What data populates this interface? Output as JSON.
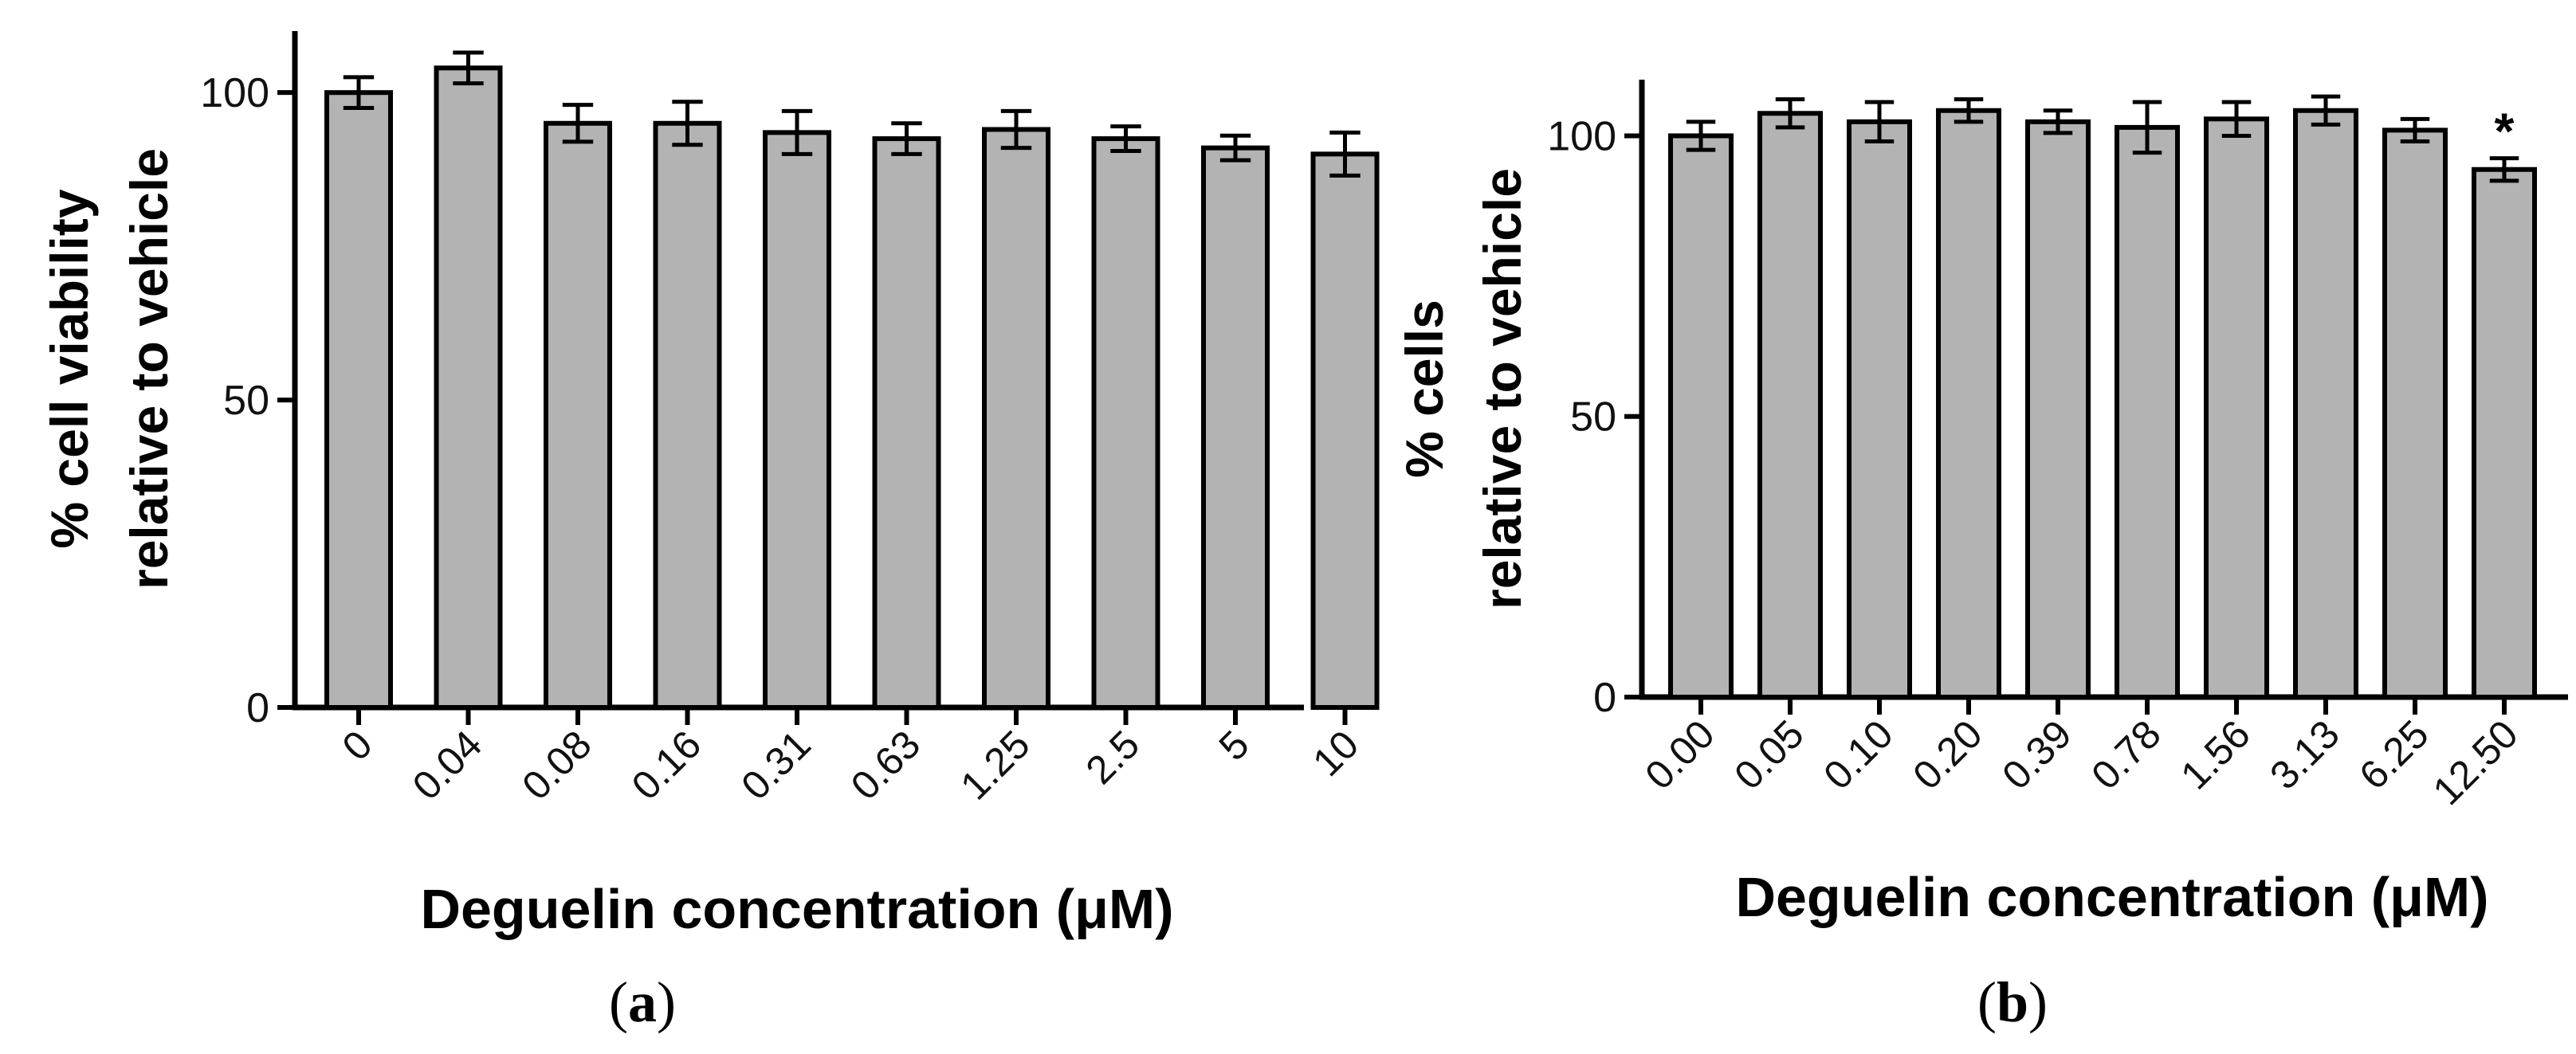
{
  "colors": {
    "bar_fill": "#b3b3b3",
    "bar_stroke": "#000000",
    "axis": "#000000"
  },
  "chart_data": [
    {
      "type": "bar",
      "panel_label": "a",
      "xlabel": "Deguelin concentration (μM)",
      "ylabel_lines": [
        "% cell viability",
        "relative to vehicle"
      ],
      "categories": [
        "0",
        "0.04",
        "0.08",
        "0.16",
        "0.31",
        "0.63",
        "1.25",
        "2.5",
        "5",
        "10"
      ],
      "values": [
        100,
        104,
        95,
        95,
        93.5,
        92.5,
        94,
        92.5,
        91,
        90
      ],
      "errors": [
        2.5,
        2.5,
        3,
        3.5,
        3.5,
        2.5,
        3,
        2,
        2,
        3.5
      ],
      "annotations": [],
      "yticks": [
        0,
        50,
        100
      ],
      "ylim": [
        0,
        110
      ]
    },
    {
      "type": "bar",
      "panel_label": "b",
      "xlabel": "Deguelin concentration (μM)",
      "ylabel_lines": [
        "% cells",
        "relative to vehicle"
      ],
      "categories": [
        "0.00",
        "0.05",
        "0.10",
        "0.20",
        "0.39",
        "0.78",
        "1.56",
        "3.13",
        "6.25",
        "12.50"
      ],
      "values": [
        100,
        104,
        102.5,
        104.5,
        102.5,
        101.5,
        103,
        104.5,
        101,
        94
      ],
      "errors": [
        2.5,
        2.5,
        3.5,
        2,
        2,
        4.5,
        3,
        2.5,
        2,
        2
      ],
      "annotations": [
        "",
        "",
        "",
        "",
        "",
        "",
        "",
        "",
        "",
        "*"
      ],
      "yticks": [
        0,
        50,
        100
      ],
      "ylim": [
        0,
        110
      ]
    }
  ]
}
